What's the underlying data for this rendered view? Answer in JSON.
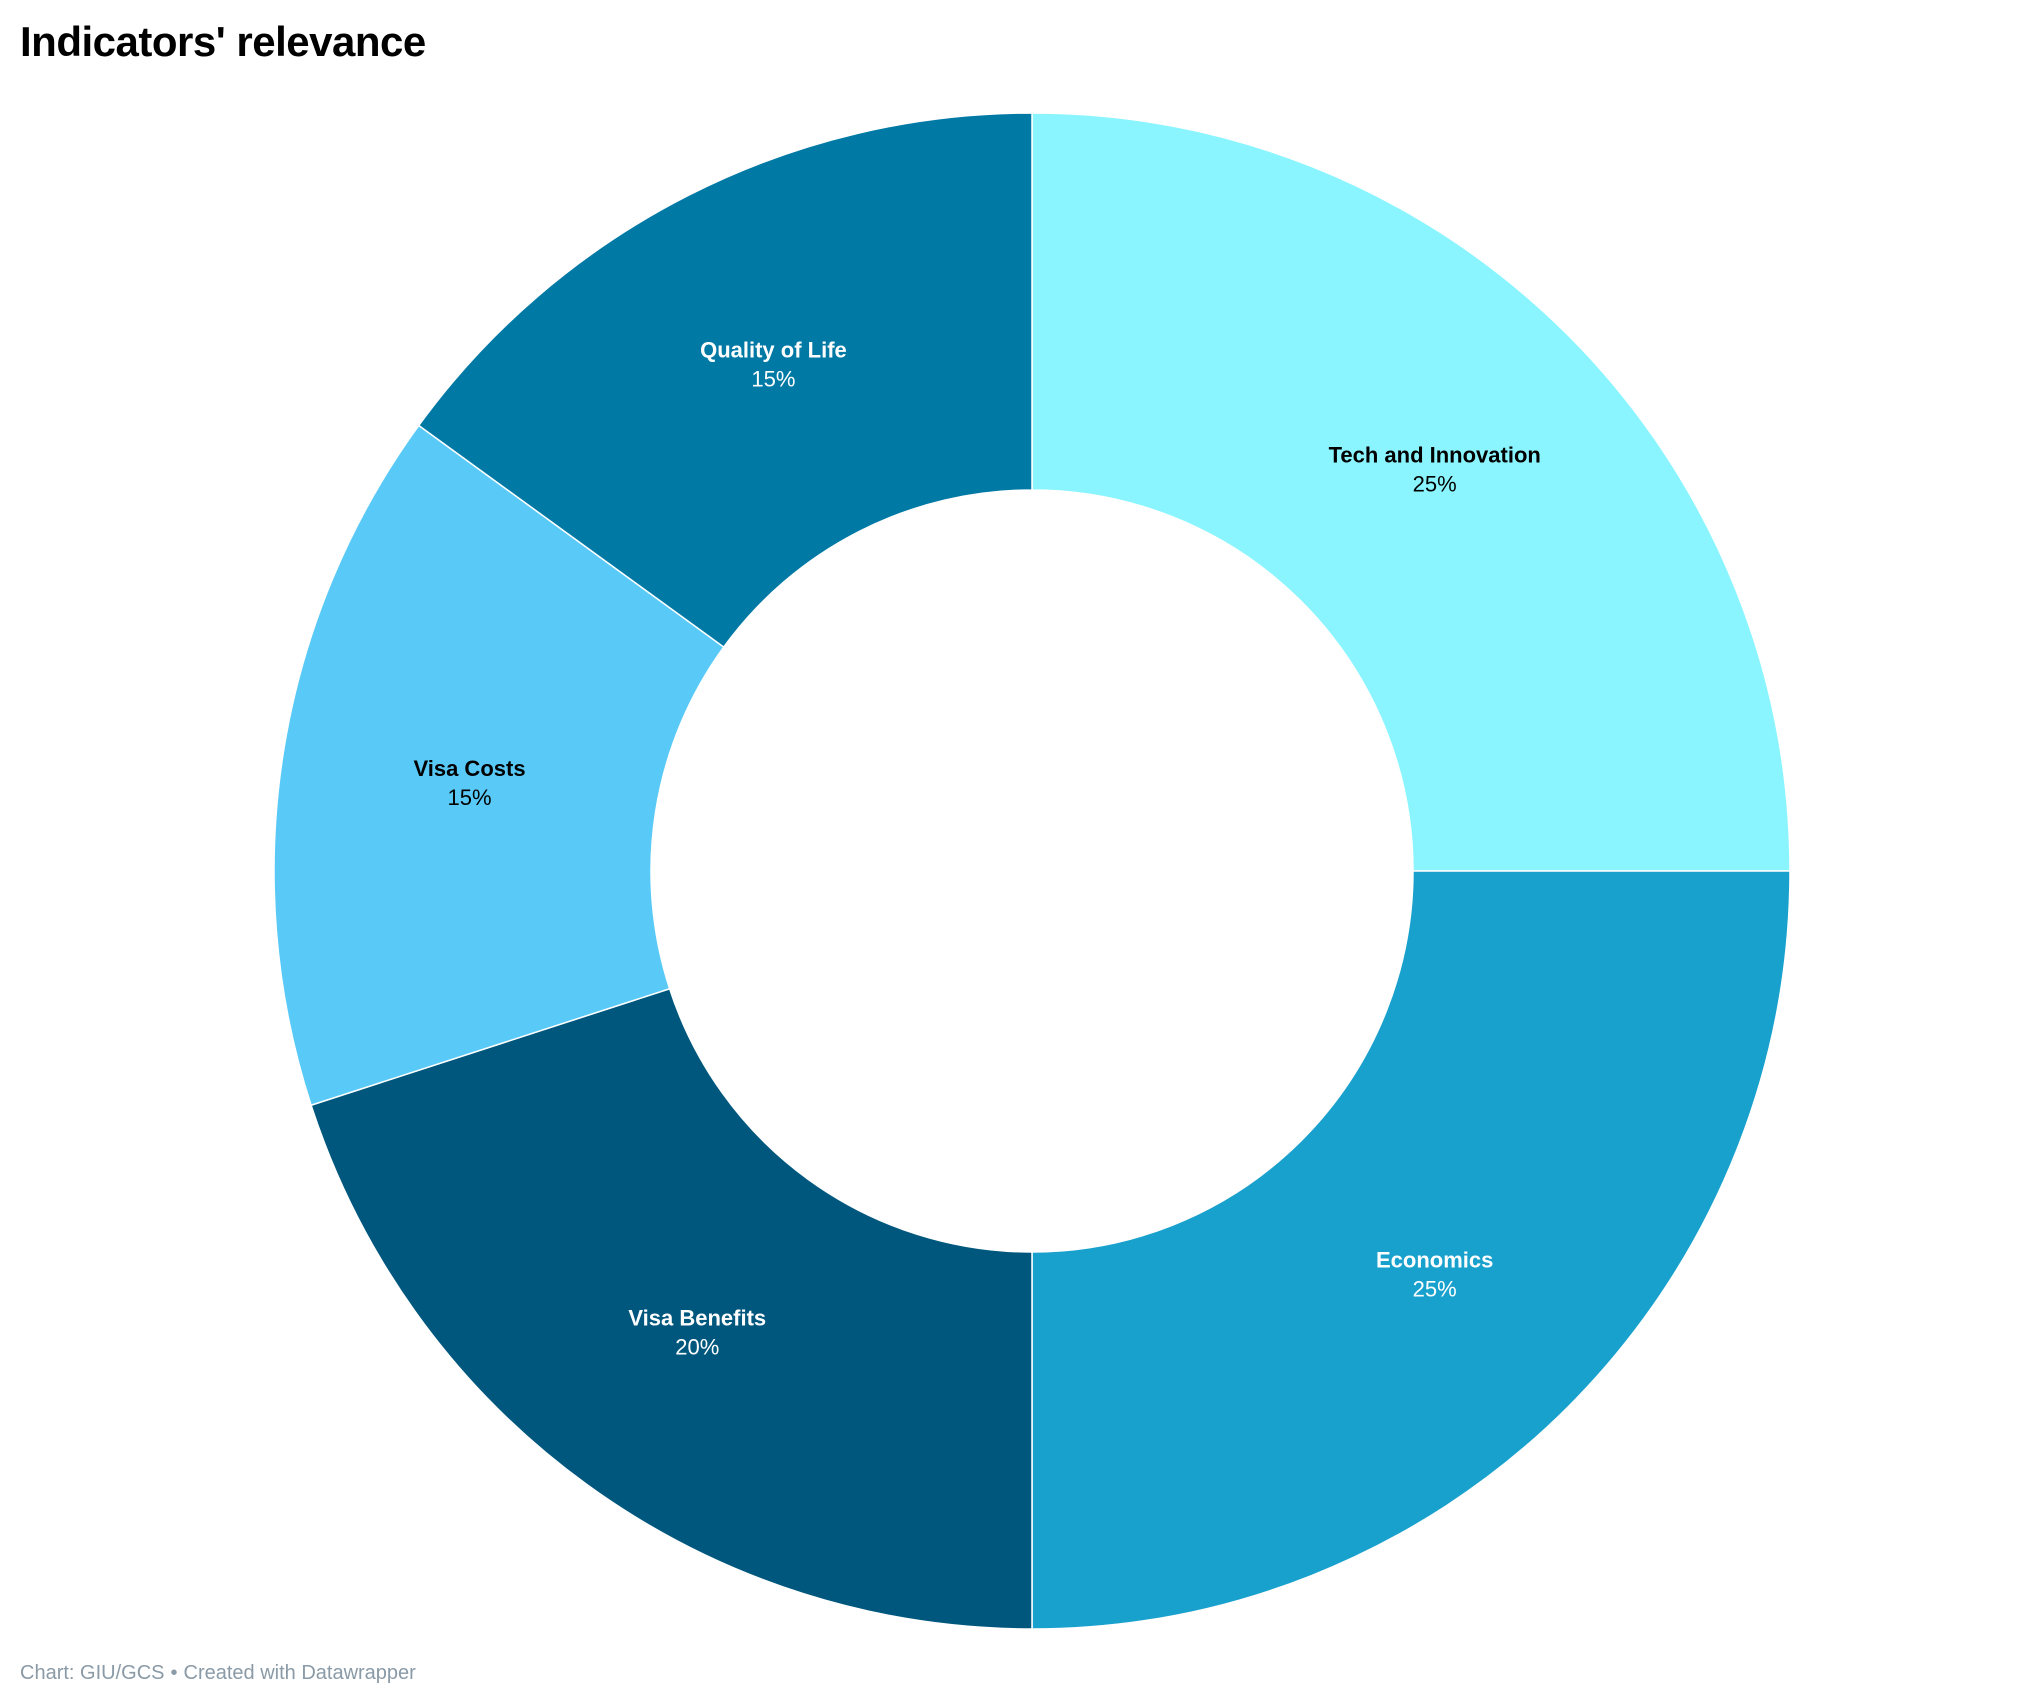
{
  "chart_data": {
    "type": "pie",
    "variant": "donut",
    "title": "Indicators' relevance",
    "categories": [
      "Tech and Innovation",
      "Economics",
      "Visa Benefits",
      "Visa Costs",
      "Quality of Life"
    ],
    "values": [
      25,
      25,
      20,
      15,
      15
    ],
    "value_labels": [
      "25%",
      "25%",
      "20%",
      "15%",
      "15%"
    ],
    "colors": [
      "#8af5ff",
      "#19a1cd",
      "#00577d",
      "#59caf7",
      "#0079a5"
    ],
    "label_colors": [
      "#000000",
      "#ffffff",
      "#ffffff",
      "#000000",
      "#ffffff"
    ],
    "start_angle_deg": 0,
    "direction": "clockwise"
  },
  "footer": {
    "source": "Chart: GIU/GCS",
    "separator": "•",
    "credit": "Created with Datawrapper"
  }
}
